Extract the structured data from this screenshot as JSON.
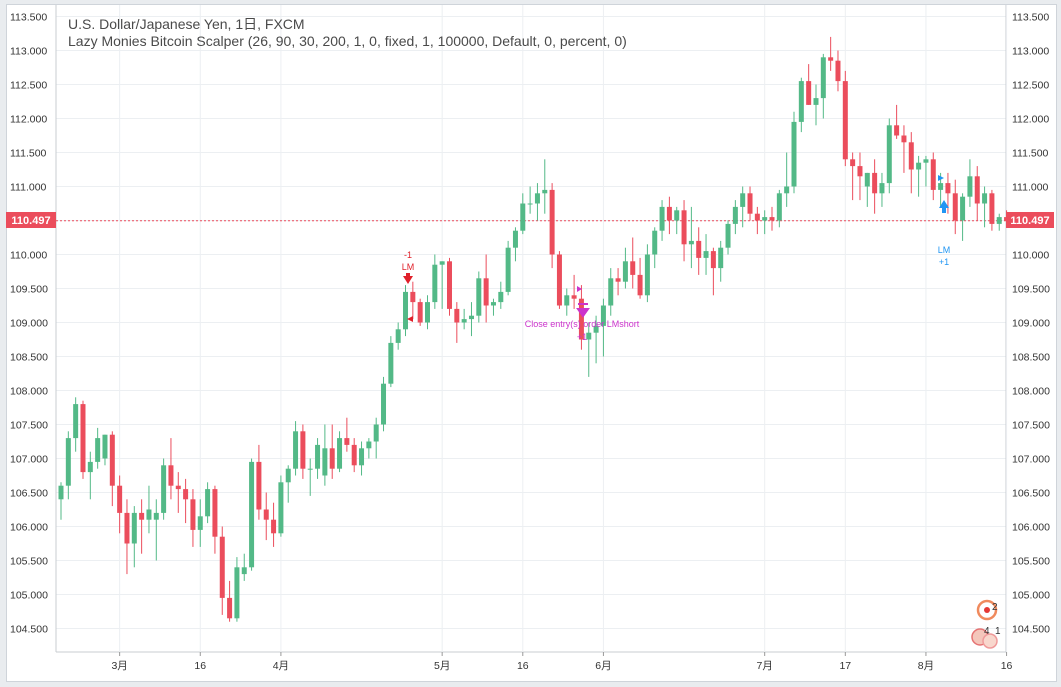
{
  "header": {
    "symbol_title": "U.S. Dollar/Japanese Yen, 1日, FXCM",
    "indicator_title": "Lazy Monies Bitcoin Scalper (26, 90, 30, 200, 1, 0, fixed, 1, 100000, Default, 0, percent, 0)"
  },
  "chart_data": {
    "type": "candlestick",
    "ylim": [
      104.2,
      113.6
    ],
    "y_ticks": [
      "113.500",
      "113.000",
      "112.500",
      "112.000",
      "111.500",
      "111.000",
      "110.500",
      "110.000",
      "109.500",
      "109.000",
      "108.500",
      "108.000",
      "107.500",
      "107.000",
      "106.500",
      "106.000",
      "105.500",
      "105.000",
      "104.500"
    ],
    "x_ticks": [
      {
        "label": "3月",
        "idx": 8
      },
      {
        "label": "16",
        "idx": 19
      },
      {
        "label": "4月",
        "idx": 30
      },
      {
        "label": "5月",
        "idx": 52
      },
      {
        "label": "16",
        "idx": 63
      },
      {
        "label": "6月",
        "idx": 74
      },
      {
        "label": "7月",
        "idx": 96
      },
      {
        "label": "17",
        "idx": 107
      },
      {
        "label": "8月",
        "idx": 118
      },
      {
        "label": "16",
        "idx": 129
      }
    ],
    "last_price": {
      "label": "110.497",
      "value": 110.497
    },
    "candles": [
      [
        106.4,
        106.65,
        106.1,
        106.6
      ],
      [
        106.6,
        107.4,
        106.4,
        107.3
      ],
      [
        107.3,
        107.9,
        107.1,
        107.8
      ],
      [
        107.8,
        107.85,
        106.7,
        106.8
      ],
      [
        106.8,
        107.1,
        106.4,
        106.95
      ],
      [
        106.95,
        107.45,
        106.85,
        107.3
      ],
      [
        107.0,
        107.35,
        106.9,
        107.35
      ],
      [
        107.35,
        107.4,
        106.3,
        106.6
      ],
      [
        106.6,
        106.75,
        105.9,
        106.2
      ],
      [
        106.2,
        106.4,
        105.3,
        105.75
      ],
      [
        105.75,
        106.3,
        105.4,
        106.2
      ],
      [
        106.2,
        106.4,
        105.6,
        106.1
      ],
      [
        106.1,
        106.6,
        105.9,
        106.25
      ],
      [
        106.1,
        106.4,
        105.5,
        106.2
      ],
      [
        106.2,
        107.0,
        106.1,
        106.9
      ],
      [
        106.9,
        107.3,
        106.4,
        106.6
      ],
      [
        106.6,
        106.8,
        106.2,
        106.55
      ],
      [
        106.55,
        106.7,
        106.05,
        106.4
      ],
      [
        106.4,
        106.55,
        105.7,
        105.95
      ],
      [
        105.95,
        106.4,
        105.7,
        106.15
      ],
      [
        106.15,
        106.65,
        106.05,
        106.55
      ],
      [
        106.55,
        106.6,
        105.6,
        105.85
      ],
      [
        105.85,
        106.0,
        104.7,
        104.95
      ],
      [
        104.95,
        105.2,
        104.6,
        104.65
      ],
      [
        104.65,
        105.55,
        104.6,
        105.4
      ],
      [
        105.3,
        105.6,
        105.2,
        105.4
      ],
      [
        105.4,
        107.0,
        105.35,
        106.95
      ],
      [
        106.95,
        107.2,
        106.1,
        106.25
      ],
      [
        106.25,
        106.5,
        105.8,
        106.1
      ],
      [
        106.1,
        106.35,
        105.7,
        105.9
      ],
      [
        105.9,
        106.75,
        105.85,
        106.65
      ],
      [
        106.65,
        106.9,
        106.35,
        106.85
      ],
      [
        106.85,
        107.55,
        106.75,
        107.4
      ],
      [
        107.4,
        107.5,
        106.7,
        106.85
      ],
      [
        106.85,
        107.0,
        106.45,
        106.85
      ],
      [
        106.85,
        107.3,
        106.7,
        107.2
      ],
      [
        106.75,
        107.5,
        106.6,
        107.15
      ],
      [
        107.15,
        107.5,
        106.7,
        106.85
      ],
      [
        106.85,
        107.4,
        106.8,
        107.3
      ],
      [
        107.3,
        107.6,
        107.1,
        107.2
      ],
      [
        107.2,
        107.3,
        106.8,
        106.9
      ],
      [
        106.9,
        107.25,
        106.75,
        107.15
      ],
      [
        107.15,
        107.3,
        107.0,
        107.25
      ],
      [
        107.25,
        107.6,
        107.0,
        107.5
      ],
      [
        107.5,
        108.2,
        107.4,
        108.1
      ],
      [
        108.1,
        108.8,
        108.05,
        108.7
      ],
      [
        108.7,
        109.0,
        108.6,
        108.9
      ],
      [
        108.9,
        109.55,
        108.8,
        109.45
      ],
      [
        109.45,
        109.6,
        109.05,
        109.3
      ],
      [
        109.3,
        109.35,
        108.95,
        109.0
      ],
      [
        109.0,
        109.4,
        108.9,
        109.3
      ],
      [
        109.3,
        110.0,
        109.2,
        109.85
      ],
      [
        109.85,
        109.9,
        109.2,
        109.9
      ],
      [
        109.9,
        109.95,
        109.1,
        109.2
      ],
      [
        109.2,
        109.3,
        108.7,
        109.0
      ],
      [
        109.0,
        109.2,
        108.9,
        109.05
      ],
      [
        109.05,
        109.3,
        108.8,
        109.1
      ],
      [
        109.1,
        109.75,
        109.0,
        109.65
      ],
      [
        109.65,
        110.0,
        109.0,
        109.25
      ],
      [
        109.25,
        109.35,
        109.1,
        109.3
      ],
      [
        109.3,
        109.6,
        109.2,
        109.45
      ],
      [
        109.45,
        110.2,
        109.4,
        110.1
      ],
      [
        110.1,
        110.4,
        109.9,
        110.35
      ],
      [
        110.35,
        110.9,
        110.3,
        110.75
      ],
      [
        110.75,
        111.0,
        110.6,
        110.75
      ],
      [
        110.75,
        111.05,
        110.5,
        110.9
      ],
      [
        110.9,
        111.4,
        110.6,
        110.95
      ],
      [
        110.95,
        111.05,
        109.8,
        110.0
      ],
      [
        110.0,
        110.05,
        109.2,
        109.25
      ],
      [
        109.25,
        109.5,
        109.1,
        109.4
      ],
      [
        109.4,
        109.7,
        109.2,
        109.35
      ],
      [
        109.35,
        109.55,
        108.6,
        108.75
      ],
      [
        108.75,
        109.0,
        108.2,
        108.85
      ],
      [
        108.85,
        109.1,
        108.4,
        108.95
      ],
      [
        108.95,
        109.35,
        108.5,
        109.25
      ],
      [
        109.25,
        109.8,
        109.1,
        109.65
      ],
      [
        109.65,
        109.8,
        109.4,
        109.6
      ],
      [
        109.6,
        110.1,
        109.5,
        109.9
      ],
      [
        109.9,
        110.25,
        109.5,
        109.7
      ],
      [
        109.7,
        109.95,
        109.35,
        109.4
      ],
      [
        109.4,
        110.15,
        109.3,
        110.0
      ],
      [
        110.0,
        110.4,
        109.8,
        110.35
      ],
      [
        110.35,
        110.8,
        110.2,
        110.7
      ],
      [
        110.7,
        110.85,
        110.3,
        110.5
      ],
      [
        110.5,
        110.7,
        110.3,
        110.65
      ],
      [
        110.65,
        110.8,
        109.9,
        110.15
      ],
      [
        110.15,
        110.7,
        109.8,
        110.2
      ],
      [
        110.2,
        110.4,
        109.7,
        109.95
      ],
      [
        109.95,
        110.3,
        109.7,
        110.05
      ],
      [
        110.05,
        110.1,
        109.4,
        109.8
      ],
      [
        109.8,
        110.2,
        109.6,
        110.1
      ],
      [
        110.1,
        110.5,
        110.0,
        110.45
      ],
      [
        110.45,
        110.8,
        110.3,
        110.7
      ],
      [
        110.7,
        111.0,
        110.4,
        110.9
      ],
      [
        110.9,
        111.0,
        110.5,
        110.6
      ],
      [
        110.6,
        110.7,
        110.3,
        110.5
      ],
      [
        110.5,
        110.65,
        110.3,
        110.55
      ],
      [
        110.55,
        110.7,
        110.35,
        110.5
      ],
      [
        110.5,
        110.95,
        110.4,
        110.9
      ],
      [
        110.9,
        111.5,
        110.7,
        111.0
      ],
      [
        111.0,
        112.1,
        110.9,
        111.95
      ],
      [
        111.95,
        112.6,
        111.8,
        112.55
      ],
      [
        112.55,
        112.8,
        112.2,
        112.2
      ],
      [
        112.2,
        112.5,
        111.9,
        112.3
      ],
      [
        112.3,
        112.95,
        112.0,
        112.9
      ],
      [
        112.9,
        113.2,
        112.7,
        112.85
      ],
      [
        112.85,
        113.0,
        112.4,
        112.55
      ],
      [
        112.55,
        112.7,
        111.3,
        111.4
      ],
      [
        111.4,
        111.5,
        110.8,
        111.3
      ],
      [
        111.3,
        111.5,
        110.8,
        111.15
      ],
      [
        111.0,
        111.2,
        110.7,
        111.2
      ],
      [
        111.2,
        111.4,
        110.6,
        110.9
      ],
      [
        110.9,
        111.2,
        110.7,
        111.05
      ],
      [
        111.05,
        112.0,
        110.9,
        111.9
      ],
      [
        111.9,
        112.2,
        111.7,
        111.75
      ],
      [
        111.75,
        111.9,
        111.2,
        111.65
      ],
      [
        111.65,
        111.8,
        110.9,
        111.25
      ],
      [
        111.25,
        111.45,
        110.85,
        111.35
      ],
      [
        111.35,
        111.45,
        111.0,
        111.4
      ],
      [
        111.4,
        111.5,
        110.8,
        110.95
      ],
      [
        110.95,
        111.2,
        110.7,
        111.05
      ],
      [
        111.05,
        111.2,
        110.6,
        110.9
      ],
      [
        110.9,
        111.1,
        110.3,
        110.5
      ],
      [
        110.5,
        110.9,
        110.2,
        110.85
      ],
      [
        110.85,
        111.4,
        110.7,
        111.15
      ],
      [
        111.15,
        111.3,
        110.5,
        110.75
      ],
      [
        110.75,
        111.0,
        110.4,
        110.9
      ],
      [
        110.9,
        110.95,
        110.35,
        110.45
      ],
      [
        110.45,
        110.6,
        110.35,
        110.55
      ],
      [
        110.55,
        110.65,
        110.4,
        110.5
      ]
    ],
    "annotations": [
      {
        "label": "-1",
        "color": "#e0202a"
      },
      {
        "label": "LM",
        "color": "#e0202a"
      },
      {
        "label": "Close entry(s) order LMshort",
        "color": "#cc33cc"
      },
      {
        "label": "+1",
        "color": "#cc33cc"
      },
      {
        "label": "LM",
        "color": "#2196f3"
      },
      {
        "label": "+1",
        "color": "#2196f3"
      }
    ],
    "colors": {
      "up": "#53b987",
      "down": "#eb4d5c",
      "grid": "#eceff2",
      "price_line": "#eb4d5c"
    }
  },
  "badge": {
    "count_top": "2",
    "count_a": "4",
    "count_b": "1"
  }
}
